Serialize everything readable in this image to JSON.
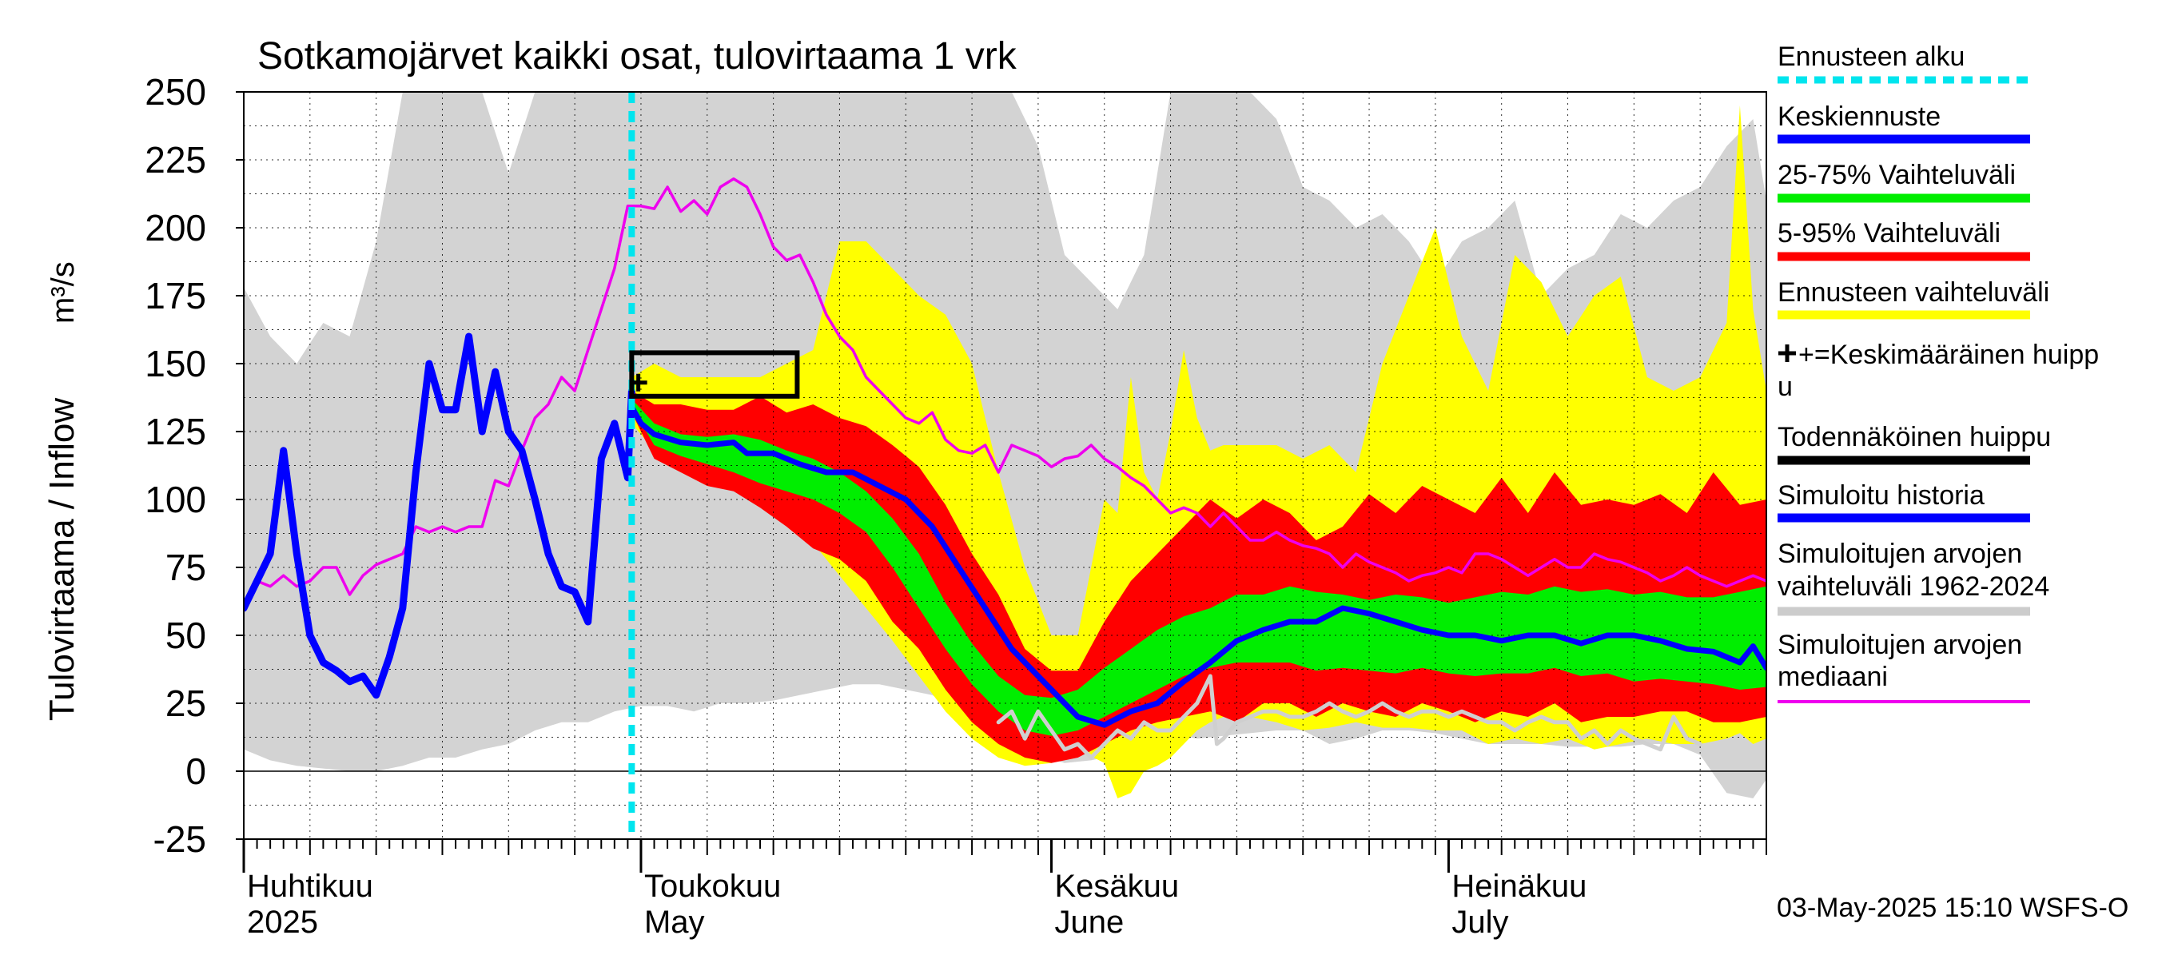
{
  "chart_data": {
    "type": "area",
    "title": "Sotkamojärvet kaikki osat, tulovirtaama 1 vrk",
    "ylabel_fi": "Tulovirtaama / Inflow",
    "ylabel_unit": "m³/s",
    "ylim": [
      -25,
      250
    ],
    "yticks": [
      -25,
      0,
      25,
      50,
      75,
      100,
      125,
      150,
      175,
      200,
      225,
      250
    ],
    "xlim_days": [
      0,
      115
    ],
    "month_starts_days": [
      0,
      30,
      61,
      91
    ],
    "x_labels": [
      {
        "top": "Huhtikuu",
        "bottom": "2025"
      },
      {
        "top": "Toukokuu",
        "bottom": "May"
      },
      {
        "top": "Kesäkuu",
        "bottom": "June"
      },
      {
        "top": "Heinäkuu",
        "bottom": "July"
      }
    ],
    "forecast_start_day": 29.3,
    "probable_peak_box": {
      "day_from": 29.3,
      "day_to": 41.8,
      "low": 138,
      "high": 154
    },
    "mean_peak": {
      "day": 29.8,
      "value": 143
    },
    "footer": "03-May-2025 15:10 WSFS-O",
    "legend": [
      {
        "label": "Ennusteen alku",
        "color": "#00e5ee",
        "dashed": true
      },
      {
        "label": "Keskiennuste",
        "color": "#0000ff"
      },
      {
        "label": "25-75% Vaihteluväli",
        "color": "#00ee00"
      },
      {
        "label": "5-95% Vaihteluväli",
        "color": "#ff0000"
      },
      {
        "label": "Ennusteen vaihteluväli",
        "color": "#ffff00"
      },
      {
        "label": "+=Keskimääräinen huipp",
        "label2": "u",
        "color": "#000000",
        "marker": true
      },
      {
        "label": "Todennäköinen huippu",
        "color": "#000000"
      },
      {
        "label": "Simuloitu historia",
        "color": "#0000ff"
      },
      {
        "label": "Simuloitujen arvojen",
        "label2": "vaihteluväli 1962-2024",
        "color": "#cccccc"
      },
      {
        "label": "Simuloitujen arvojen",
        "label2": "mediaani",
        "color": "#ee00ee"
      }
    ],
    "series": {
      "hist_range": {
        "days": [
          0,
          2,
          4,
          6,
          8,
          10,
          12,
          14,
          16,
          18,
          20,
          22,
          24,
          26,
          28,
          30,
          32,
          34,
          36,
          38,
          40,
          42,
          44,
          46,
          48,
          50,
          52,
          54,
          56,
          58,
          60,
          62,
          64,
          66,
          68,
          70,
          72,
          74,
          76,
          78,
          80,
          82,
          84,
          86,
          88,
          90,
          92,
          94,
          96,
          98,
          100,
          102,
          104,
          106,
          108,
          110,
          112,
          114,
          115
        ],
        "upper": [
          178,
          160,
          150,
          165,
          160,
          195,
          250,
          250,
          250,
          250,
          220,
          250,
          250,
          250,
          250,
          250,
          250,
          250,
          250,
          250,
          250,
          250,
          250,
          250,
          250,
          250,
          250,
          250,
          250,
          250,
          230,
          190,
          180,
          170,
          190,
          250,
          250,
          250,
          250,
          240,
          215,
          210,
          200,
          205,
          195,
          180,
          195,
          200,
          210,
          175,
          185,
          190,
          205,
          200,
          210,
          215,
          230,
          240,
          210
        ],
        "lower": [
          8,
          4,
          2,
          1,
          0,
          0,
          2,
          5,
          5,
          8,
          10,
          15,
          18,
          18,
          22,
          24,
          24,
          22,
          25,
          25,
          26,
          28,
          30,
          32,
          32,
          30,
          28,
          22,
          15,
          10,
          6,
          3,
          4,
          6,
          10,
          14,
          12,
          13,
          14,
          15,
          15,
          10,
          12,
          15,
          15,
          14,
          12,
          10,
          10,
          10,
          9,
          9,
          9,
          10,
          10,
          6,
          -8,
          -10,
          -3
        ]
      },
      "ens_range": {
        "days": [
          29.3,
          31,
          33,
          35,
          37,
          39,
          41,
          43,
          45,
          47,
          49,
          51,
          53,
          55,
          57,
          59,
          61,
          63,
          65,
          66,
          67,
          68,
          69,
          70,
          71,
          72,
          73,
          74,
          76,
          78,
          80,
          82,
          84,
          86,
          88,
          90,
          92,
          94,
          96,
          98,
          100,
          102,
          104,
          106,
          108,
          110,
          112,
          113,
          114,
          115
        ],
        "upper": [
          145,
          150,
          145,
          145,
          145,
          145,
          150,
          155,
          195,
          195,
          185,
          175,
          168,
          150,
          110,
          75,
          50,
          50,
          100,
          95,
          145,
          110,
          100,
          125,
          155,
          130,
          118,
          120,
          120,
          120,
          115,
          120,
          110,
          150,
          175,
          200,
          160,
          140,
          190,
          180,
          160,
          175,
          182,
          145,
          140,
          145,
          165,
          245,
          170,
          140
        ],
        "lower": [
          128,
          118,
          112,
          108,
          105,
          100,
          92,
          84,
          72,
          60,
          48,
          35,
          22,
          12,
          5,
          2,
          3,
          8,
          3,
          -10,
          -8,
          0,
          2,
          5,
          10,
          15,
          18,
          20,
          20,
          18,
          15,
          16,
          18,
          16,
          16,
          15,
          15,
          10,
          12,
          10,
          12,
          8,
          10,
          12,
          10,
          10,
          12,
          14,
          10,
          12
        ]
      },
      "p5_95": {
        "days": [
          29.3,
          31,
          33,
          35,
          37,
          39,
          41,
          43,
          45,
          47,
          49,
          51,
          53,
          55,
          57,
          59,
          61,
          63,
          65,
          67,
          69,
          71,
          73,
          75,
          77,
          79,
          81,
          83,
          85,
          87,
          89,
          91,
          93,
          95,
          97,
          99,
          101,
          103,
          105,
          107,
          109,
          111,
          113,
          115
        ],
        "upper": [
          140,
          135,
          135,
          133,
          133,
          138,
          132,
          135,
          130,
          127,
          120,
          112,
          98,
          80,
          65,
          45,
          37,
          37,
          55,
          70,
          80,
          90,
          100,
          93,
          100,
          95,
          85,
          90,
          102,
          95,
          105,
          100,
          95,
          108,
          95,
          110,
          98,
          100,
          98,
          102,
          95,
          110,
          98,
          100
        ],
        "lower": [
          132,
          115,
          110,
          105,
          103,
          97,
          90,
          82,
          78,
          70,
          55,
          45,
          30,
          18,
          10,
          5,
          3,
          5,
          10,
          15,
          18,
          20,
          22,
          18,
          25,
          25,
          20,
          25,
          22,
          20,
          25,
          22,
          18,
          22,
          20,
          25,
          18,
          20,
          20,
          22,
          22,
          18,
          18,
          20
        ]
      },
      "p25_75": {
        "days": [
          29.3,
          31,
          33,
          35,
          37,
          39,
          41,
          43,
          45,
          47,
          49,
          51,
          53,
          55,
          57,
          59,
          61,
          63,
          65,
          67,
          69,
          71,
          73,
          75,
          77,
          79,
          81,
          83,
          85,
          87,
          89,
          91,
          93,
          95,
          97,
          99,
          101,
          103,
          105,
          107,
          109,
          111,
          113,
          115
        ],
        "upper": [
          137,
          128,
          124,
          123,
          124,
          122,
          118,
          115,
          110,
          103,
          93,
          80,
          62,
          47,
          35,
          28,
          27,
          30,
          38,
          45,
          52,
          57,
          60,
          65,
          65,
          68,
          66,
          65,
          63,
          65,
          64,
          62,
          64,
          66,
          65,
          68,
          66,
          67,
          65,
          66,
          64,
          64,
          66,
          68
        ],
        "lower": [
          134,
          120,
          116,
          113,
          110,
          106,
          103,
          100,
          95,
          88,
          75,
          60,
          45,
          32,
          22,
          15,
          13,
          15,
          20,
          25,
          30,
          35,
          38,
          40,
          40,
          40,
          37,
          38,
          37,
          36,
          38,
          36,
          35,
          36,
          36,
          38,
          35,
          36,
          33,
          34,
          33,
          32,
          30,
          31
        ]
      },
      "median_forecast": {
        "days": [
          29.3,
          30,
          31,
          33,
          35,
          37,
          38,
          40,
          42,
          44,
          46,
          48,
          50,
          52,
          54,
          56,
          58,
          60,
          61,
          62,
          63,
          65,
          67,
          69,
          71,
          73,
          75,
          77,
          79,
          81,
          83,
          85,
          87,
          89,
          91,
          93,
          95,
          97,
          99,
          101,
          103,
          105,
          107,
          109,
          111,
          113,
          114,
          115
        ],
        "values": [
          134,
          128,
          124,
          121,
          120,
          121,
          117,
          117,
          113,
          110,
          110,
          105,
          100,
          90,
          75,
          60,
          45,
          35,
          30,
          25,
          20,
          17,
          22,
          25,
          33,
          40,
          48,
          52,
          55,
          55,
          60,
          58,
          55,
          52,
          50,
          50,
          48,
          50,
          50,
          47,
          50,
          50,
          48,
          45,
          44,
          40,
          46,
          38
        ]
      },
      "sim_history": {
        "days": [
          0,
          1,
          2,
          3,
          4,
          5,
          6,
          7,
          8,
          9,
          10,
          11,
          12,
          13,
          14,
          15,
          16,
          17,
          18,
          19,
          20,
          21,
          22,
          23,
          24,
          25,
          26,
          27,
          28,
          29,
          29.3
        ],
        "values": [
          60,
          70,
          80,
          118,
          80,
          50,
          40,
          37,
          33,
          35,
          28,
          42,
          60,
          110,
          150,
          133,
          133,
          160,
          125,
          147,
          125,
          118,
          100,
          80,
          68,
          66,
          55,
          115,
          128,
          108,
          140
        ]
      },
      "hist_median": {
        "days": [
          0,
          1,
          2,
          3,
          4,
          5,
          6,
          7,
          8,
          9,
          10,
          11,
          12,
          13,
          14,
          15,
          16,
          17,
          18,
          19,
          20,
          21,
          22,
          23,
          24,
          25,
          26,
          27,
          28,
          29,
          30,
          31,
          32,
          33,
          34,
          35,
          36,
          37,
          38,
          39,
          40,
          41,
          42,
          43,
          44,
          45,
          46,
          47,
          48,
          49,
          50,
          51,
          52,
          53,
          54,
          55,
          56,
          57,
          58,
          59,
          60,
          61,
          62,
          63,
          64,
          65,
          66,
          67,
          68,
          69,
          70,
          71,
          72,
          73,
          74,
          75,
          76,
          77,
          78,
          79,
          80,
          81,
          82,
          83,
          84,
          85,
          86,
          87,
          88,
          89,
          90,
          91,
          92,
          93,
          94,
          95,
          96,
          97,
          98,
          99,
          100,
          101,
          102,
          103,
          104,
          105,
          106,
          107,
          108,
          109,
          110,
          111,
          112,
          113,
          114,
          115
        ],
        "values": [
          62,
          70,
          68,
          72,
          68,
          70,
          75,
          75,
          65,
          72,
          76,
          78,
          80,
          90,
          88,
          90,
          88,
          90,
          90,
          107,
          105,
          118,
          130,
          135,
          145,
          140,
          155,
          170,
          185,
          208,
          208,
          207,
          215,
          206,
          210,
          205,
          215,
          218,
          215,
          205,
          193,
          188,
          190,
          180,
          168,
          160,
          155,
          145,
          140,
          135,
          130,
          128,
          132,
          122,
          118,
          117,
          120,
          110,
          120,
          118,
          116,
          112,
          115,
          116,
          120,
          115,
          112,
          108,
          105,
          100,
          95,
          97,
          95,
          90,
          95,
          90,
          85,
          85,
          88,
          85,
          83,
          82,
          80,
          75,
          80,
          77,
          75,
          73,
          70,
          72,
          73,
          75,
          73,
          80,
          80,
          78,
          75,
          72,
          75,
          78,
          75,
          75,
          80,
          78,
          77,
          75,
          73,
          70,
          72,
          75,
          72,
          70,
          68,
          70,
          72,
          70
        ]
      },
      "sim_observed_gray": {
        "days": [
          57,
          58,
          59,
          60,
          61,
          62,
          63,
          64,
          65,
          66,
          67,
          68,
          69,
          70,
          71,
          72,
          73,
          73.5,
          74,
          75,
          76,
          77,
          78,
          79,
          80,
          81,
          82,
          83,
          84,
          85,
          86,
          87,
          88,
          89,
          90,
          91,
          92,
          93,
          94,
          95,
          96,
          97,
          98,
          99,
          100,
          101,
          102,
          103,
          104,
          105,
          106,
          107,
          108,
          109,
          110
        ],
        "values": [
          18,
          22,
          12,
          22,
          15,
          8,
          10,
          5,
          10,
          15,
          12,
          18,
          15,
          15,
          20,
          25,
          35,
          10,
          12,
          18,
          20,
          22,
          22,
          20,
          20,
          22,
          25,
          22,
          20,
          22,
          25,
          22,
          20,
          22,
          22,
          20,
          22,
          20,
          18,
          18,
          15,
          18,
          20,
          18,
          18,
          12,
          15,
          10,
          15,
          12,
          10,
          8,
          20,
          12,
          10
        ]
      }
    }
  }
}
